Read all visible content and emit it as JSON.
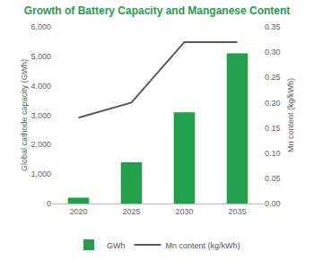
{
  "chart_data": {
    "type": "bar",
    "title": "Growth of Battery Capacity and Manganese Content",
    "categories": [
      "2020",
      "2025",
      "2030",
      "2035"
    ],
    "series": [
      {
        "name": "GWh",
        "type": "bar",
        "color": "#22a04b",
        "values": [
          200,
          1400,
          3100,
          5100
        ]
      },
      {
        "name": "Mn content (kg/kWh)",
        "type": "line",
        "axis": "y2",
        "color": "#555b5e",
        "values": [
          0.17,
          0.2,
          0.32,
          0.32
        ]
      }
    ],
    "y_label": "Global cathode capacity (GWh)",
    "y2_label": "Mn content (kg/kWh)",
    "ylim": [
      0,
      6000
    ],
    "yticks": [
      0,
      {
        "value": 1000,
        "label": "1,000"
      },
      {
        "value": 2000,
        "label": "2,000"
      },
      {
        "value": 3000,
        "label": "3,000"
      },
      {
        "value": 4000,
        "label": "4,000"
      },
      {
        "value": 5000,
        "label": "5,000"
      },
      {
        "value": 6000,
        "label": "6,000"
      }
    ],
    "y2lim": [
      0,
      0.35
    ],
    "y2ticks": [
      {
        "value": 0,
        "label": "0.00"
      },
      {
        "value": 0.05,
        "label": "0.05"
      },
      {
        "value": 0.1,
        "label": "0.10"
      },
      {
        "value": 0.15,
        "label": "0.15"
      },
      {
        "value": 0.2,
        "label": "0.20"
      },
      {
        "value": 0.25,
        "label": "0.25"
      },
      {
        "value": 0.3,
        "label": "0.30"
      },
      {
        "value": 0.35,
        "label": "0.35"
      }
    ],
    "grid": false,
    "legend": "bottom"
  }
}
